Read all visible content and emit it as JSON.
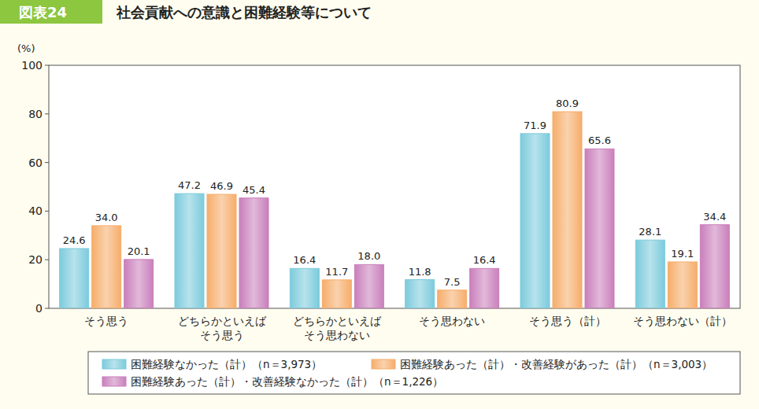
{
  "chart_data": {
    "type": "bar",
    "figure_label": "図表24",
    "title": "社会貢献への意識と困難経験等について",
    "ylabel": "(%)",
    "categories": [
      "そう思う",
      "どちらかといえば\nそう思う",
      "どちらかといえば\nそう思わない",
      "そう思わない",
      "そう思う（計）",
      "そう思わない（計）"
    ],
    "series": [
      {
        "name": "困難経験なかった（計）（n＝3,973）",
        "color": "#7ccbdc",
        "values": [
          24.6,
          47.2,
          16.4,
          11.8,
          71.9,
          28.1
        ],
        "value_labels": [
          "24.6",
          "47.2",
          "16.4",
          "11.8",
          "71.9",
          "28.1"
        ]
      },
      {
        "name": "困難経験あった（計）・改善経験があった（計）（n＝3,003）",
        "color": "#f6ad6b",
        "values": [
          34.0,
          46.9,
          11.7,
          7.5,
          80.9,
          19.1
        ],
        "value_labels": [
          "34.0",
          "46.9",
          "11.7",
          "7.5",
          "80.9",
          "19.1"
        ]
      },
      {
        "name": "困難経験あった（計）・改善経験なかった（計）（n＝1,226）",
        "color": "#c97fbb",
        "values": [
          20.1,
          45.4,
          18.0,
          16.4,
          65.6,
          34.4
        ],
        "value_labels": [
          "20.1",
          "45.4",
          "18.0",
          "16.4",
          "65.6",
          "34.4"
        ]
      }
    ],
    "ylim": [
      0,
      100
    ],
    "yticks": [
      0,
      20,
      40,
      60,
      80,
      100
    ],
    "grid": false,
    "legend": "bottom",
    "data_labels": true
  }
}
